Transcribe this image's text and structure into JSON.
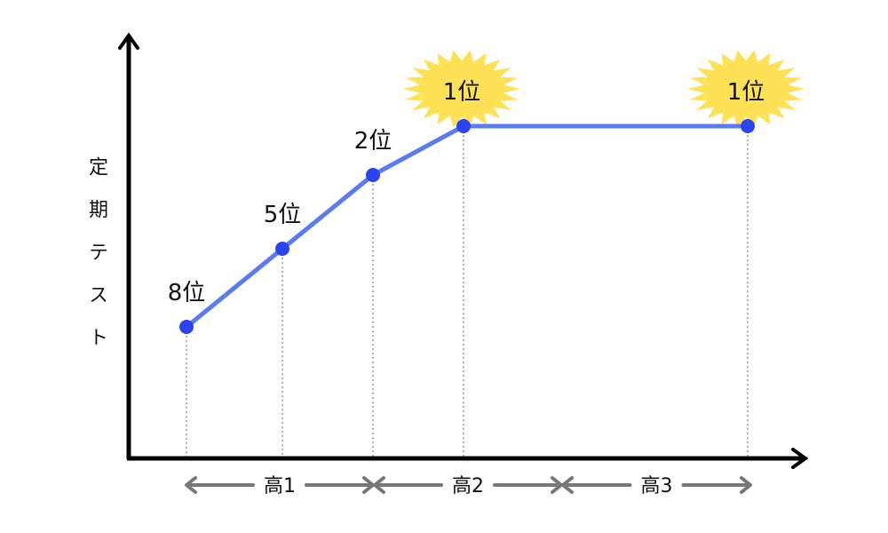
{
  "chart_data": {
    "type": "line",
    "title": "",
    "ylabel": "定期テスト",
    "xlabel": "",
    "y_reversed": true,
    "grid": false,
    "periods": [
      "高1",
      "高2",
      "高3"
    ],
    "points": [
      {
        "rank": 8,
        "label": "8位",
        "highlight": false
      },
      {
        "rank": 5,
        "label": "5位",
        "highlight": false
      },
      {
        "rank": 2,
        "label": "2位",
        "highlight": false
      },
      {
        "rank": 1,
        "label": "1位",
        "highlight": true
      },
      {
        "rank": 1,
        "label": "1位",
        "highlight": true
      }
    ],
    "colors": {
      "line": "#5a7cf0",
      "point": "#2a44f2",
      "burst": "#ffe155",
      "axis": "#000000",
      "period_arrow": "#777777"
    }
  }
}
